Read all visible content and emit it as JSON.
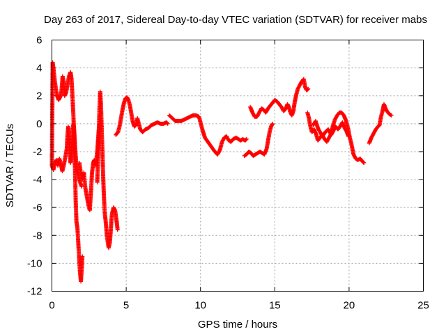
{
  "chart_data": {
    "type": "scatter",
    "title": "Day 263 of 2017, Sidereal Day-to-day VTEC variation (SDTVAR) for receiver mabs",
    "xlabel": "GPS time / hours",
    "ylabel": "SDTVAR / TECUs",
    "xlim": [
      0,
      25
    ],
    "ylim": [
      -12,
      6
    ],
    "xticks": [
      0,
      5,
      10,
      15,
      20,
      25
    ],
    "xtick_labels": [
      "0",
      "5",
      "10",
      "15",
      "20",
      "25"
    ],
    "yticks": [
      -12,
      -10,
      -8,
      -6,
      -4,
      -2,
      0,
      2,
      4,
      6
    ],
    "ytick_labels": [
      "-12",
      "-10",
      "-8",
      "-6",
      "-4",
      "-2",
      "0",
      "2",
      "4",
      "6"
    ],
    "grid": true,
    "marker": "+",
    "marker_color": "#ff0000",
    "series": [
      {
        "name": "SDTVAR",
        "tracks": [
          [
            [
              0.0,
              -3.0
            ],
            [
              0.05,
              4.4
            ],
            [
              0.12,
              3.8
            ],
            [
              0.2,
              3.0
            ],
            [
              0.28,
              2.4
            ],
            [
              0.35,
              2.0
            ],
            [
              0.45,
              1.7
            ],
            [
              0.55,
              1.9
            ],
            [
              0.65,
              2.4
            ],
            [
              0.72,
              3.4
            ],
            [
              0.8,
              3.0
            ],
            [
              0.85,
              2.0
            ],
            [
              0.95,
              2.2
            ],
            [
              1.05,
              2.8
            ],
            [
              1.15,
              3.4
            ],
            [
              1.25,
              3.7
            ],
            [
              1.32,
              3.2
            ],
            [
              1.38,
              2.0
            ],
            [
              1.45,
              0.5
            ],
            [
              1.5,
              -1.0
            ],
            [
              1.55,
              -3.0
            ],
            [
              1.6,
              -5.5
            ],
            [
              1.65,
              -7.0
            ],
            [
              1.72,
              -7.5
            ],
            [
              1.8,
              -9.0
            ],
            [
              1.88,
              -10.5
            ],
            [
              1.95,
              -11.3
            ],
            [
              2.0,
              -10.5
            ],
            [
              2.05,
              -9.5
            ]
          ],
          [
            [
              0.0,
              -3.0
            ],
            [
              0.1,
              -3.3
            ],
            [
              0.2,
              -2.8
            ],
            [
              0.3,
              -2.6
            ],
            [
              0.4,
              -3.0
            ],
            [
              0.5,
              -2.5
            ],
            [
              0.6,
              -2.9
            ],
            [
              0.7,
              -3.4
            ],
            [
              0.8,
              -3.0
            ],
            [
              0.9,
              -2.4
            ],
            [
              1.0,
              -1.8
            ],
            [
              1.05,
              -0.8
            ],
            [
              1.1,
              -0.2
            ],
            [
              1.15,
              -1.0
            ],
            [
              1.2,
              -2.0
            ],
            [
              1.25,
              -2.8
            ],
            [
              1.3,
              -2.4
            ],
            [
              1.35,
              -1.2
            ],
            [
              1.4,
              -0.4
            ],
            [
              1.45,
              0.0
            ],
            [
              1.5,
              -0.5
            ],
            [
              1.55,
              -1.5
            ],
            [
              1.62,
              -2.6
            ],
            [
              1.7,
              -3.2
            ],
            [
              1.8,
              -3.8
            ],
            [
              1.9,
              -4.2
            ],
            [
              2.0,
              -4.5
            ]
          ],
          [
            [
              1.85,
              -2.8
            ],
            [
              1.95,
              -3.6
            ],
            [
              2.05,
              -4.0
            ],
            [
              2.15,
              -3.5
            ],
            [
              2.25,
              -4.6
            ],
            [
              2.35,
              -5.2
            ],
            [
              2.45,
              -5.8
            ],
            [
              2.55,
              -6.2
            ],
            [
              2.62,
              -5.0
            ],
            [
              2.7,
              -3.5
            ],
            [
              2.78,
              -2.8
            ],
            [
              2.85,
              -2.6
            ],
            [
              2.95,
              -3.0
            ],
            [
              3.05,
              -2.0
            ],
            [
              3.15,
              -0.5
            ],
            [
              3.25,
              0.0
            ],
            [
              3.35,
              -0.2
            ]
          ],
          [
            [
              3.05,
              -4.2
            ],
            [
              3.1,
              -2.5
            ],
            [
              3.15,
              -0.8
            ],
            [
              3.2,
              1.0
            ],
            [
              3.25,
              2.3
            ],
            [
              3.3,
              1.4
            ],
            [
              3.35,
              -0.4
            ],
            [
              3.4,
              -2.0
            ],
            [
              3.45,
              -3.8
            ],
            [
              3.5,
              -5.2
            ],
            [
              3.55,
              -6.3
            ],
            [
              3.62,
              -7.0
            ],
            [
              3.7,
              -8.0
            ],
            [
              3.75,
              -8.4
            ],
            [
              3.82,
              -8.9
            ],
            [
              3.9,
              -8.5
            ],
            [
              3.95,
              -7.8
            ],
            [
              4.0,
              -7.0
            ],
            [
              4.05,
              -6.4
            ],
            [
              4.15,
              -6.0
            ],
            [
              4.25,
              -6.2
            ],
            [
              4.32,
              -6.7
            ],
            [
              4.38,
              -7.2
            ],
            [
              4.42,
              -7.6
            ]
          ],
          [
            [
              4.3,
              -0.8
            ],
            [
              4.45,
              -0.6
            ],
            [
              4.55,
              -0.2
            ],
            [
              4.65,
              0.4
            ],
            [
              4.75,
              1.0
            ],
            [
              4.85,
              1.5
            ],
            [
              4.95,
              1.8
            ],
            [
              5.05,
              1.9
            ],
            [
              5.15,
              1.7
            ],
            [
              5.25,
              1.3
            ],
            [
              5.35,
              0.7
            ],
            [
              5.45,
              0.1
            ],
            [
              5.55,
              -0.2
            ],
            [
              5.65,
              -0.1
            ],
            [
              5.75,
              0.4
            ],
            [
              5.85,
              0.0
            ],
            [
              5.95,
              -0.4
            ],
            [
              6.1,
              -0.6
            ],
            [
              6.3,
              -0.4
            ],
            [
              6.5,
              -0.3
            ],
            [
              6.7,
              -0.1
            ],
            [
              6.9,
              0.0
            ],
            [
              7.1,
              0.1
            ],
            [
              7.3,
              0.0
            ],
            [
              7.5,
              0.0
            ],
            [
              7.7,
              0.1
            ],
            [
              7.8,
              0.0
            ]
          ],
          [
            [
              7.9,
              0.6
            ],
            [
              8.1,
              0.4
            ],
            [
              8.3,
              0.2
            ],
            [
              8.5,
              0.2
            ],
            [
              8.7,
              0.2
            ],
            [
              8.9,
              0.3
            ],
            [
              9.1,
              0.4
            ],
            [
              9.3,
              0.5
            ],
            [
              9.5,
              0.6
            ],
            [
              9.7,
              0.6
            ],
            [
              9.9,
              0.5
            ],
            [
              10.0,
              0.1
            ],
            [
              10.15,
              -0.5
            ],
            [
              10.3,
              -1.0
            ],
            [
              10.5,
              -1.3
            ],
            [
              10.7,
              -1.6
            ],
            [
              10.9,
              -1.9
            ],
            [
              11.05,
              -2.1
            ],
            [
              11.15,
              -2.2
            ],
            [
              11.3,
              -1.9
            ],
            [
              11.45,
              -1.3
            ],
            [
              11.6,
              -1.0
            ],
            [
              11.75,
              -0.9
            ],
            [
              11.9,
              -1.2
            ],
            [
              12.05,
              -1.3
            ],
            [
              12.2,
              -1.1
            ],
            [
              12.4,
              -1.0
            ],
            [
              12.55,
              -1.1
            ],
            [
              12.7,
              -1.2
            ],
            [
              12.85,
              -1.1
            ],
            [
              13.0,
              -1.2
            ],
            [
              13.1,
              -1.1
            ]
          ],
          [
            [
              12.95,
              -2.3
            ],
            [
              13.1,
              -2.2
            ],
            [
              13.25,
              -2.0
            ],
            [
              13.4,
              -2.1
            ],
            [
              13.55,
              -2.3
            ],
            [
              13.7,
              -2.2
            ],
            [
              13.85,
              -2.1
            ],
            [
              14.0,
              -2.0
            ],
            [
              14.15,
              -2.1
            ],
            [
              14.3,
              -2.2
            ],
            [
              14.45,
              -1.8
            ],
            [
              14.55,
              -1.2
            ],
            [
              14.65,
              -0.6
            ],
            [
              14.75,
              -0.2
            ],
            [
              14.85,
              0.0
            ]
          ],
          [
            [
              13.35,
              1.2
            ],
            [
              13.5,
              0.8
            ],
            [
              13.65,
              0.5
            ],
            [
              13.8,
              0.5
            ],
            [
              13.95,
              0.8
            ],
            [
              14.1,
              1.1
            ],
            [
              14.25,
              1.0
            ],
            [
              14.4,
              0.8
            ],
            [
              14.55,
              1.1
            ],
            [
              14.7,
              1.3
            ],
            [
              14.85,
              1.5
            ],
            [
              15.0,
              1.7
            ],
            [
              15.15,
              1.6
            ],
            [
              15.3,
              1.4
            ],
            [
              15.45,
              1.2
            ],
            [
              15.6,
              0.9
            ],
            [
              15.75,
              1.1
            ],
            [
              15.85,
              1.4
            ],
            [
              15.95,
              1.2
            ],
            [
              16.05,
              0.8
            ],
            [
              16.15,
              0.6
            ],
            [
              16.25,
              0.9
            ],
            [
              16.35,
              1.6
            ],
            [
              16.45,
              2.1
            ],
            [
              16.55,
              2.5
            ],
            [
              16.7,
              2.8
            ],
            [
              16.8,
              3.0
            ],
            [
              16.95,
              3.2
            ],
            [
              17.05,
              2.6
            ],
            [
              17.15,
              2.4
            ],
            [
              17.25,
              2.5
            ]
          ],
          [
            [
              17.2,
              0.8
            ],
            [
              17.3,
              0.4
            ],
            [
              17.4,
              -0.2
            ],
            [
              17.5,
              -0.6
            ],
            [
              17.65,
              -0.4
            ],
            [
              17.8,
              -0.8
            ],
            [
              17.9,
              -1.2
            ],
            [
              18.05,
              -1.0
            ],
            [
              18.2,
              -0.8
            ],
            [
              18.35,
              -1.1
            ],
            [
              18.5,
              -1.3
            ],
            [
              18.65,
              -1.0
            ],
            [
              18.8,
              -0.7
            ],
            [
              18.9,
              -0.2
            ],
            [
              19.05,
              0.3
            ],
            [
              19.2,
              0.6
            ],
            [
              19.35,
              0.8
            ],
            [
              19.5,
              0.8
            ],
            [
              19.65,
              0.6
            ],
            [
              19.8,
              0.2
            ],
            [
              19.95,
              -0.4
            ],
            [
              20.05,
              -1.0
            ],
            [
              20.15,
              -1.4
            ],
            [
              20.3,
              -2.2
            ],
            [
              20.45,
              -2.5
            ],
            [
              20.6,
              -2.6
            ],
            [
              20.75,
              -2.5
            ],
            [
              20.9,
              -2.7
            ],
            [
              21.0,
              -2.8
            ]
          ],
          [
            [
              17.6,
              -0.1
            ],
            [
              17.75,
              0.2
            ],
            [
              17.9,
              -0.3
            ],
            [
              18.05,
              -0.6
            ],
            [
              18.2,
              -0.9
            ],
            [
              18.4,
              -0.6
            ],
            [
              18.6,
              -0.4
            ],
            [
              18.8,
              -0.8
            ],
            [
              18.95,
              -0.5
            ],
            [
              19.1,
              -0.2
            ],
            [
              19.25,
              -0.4
            ],
            [
              19.4,
              -0.2
            ],
            [
              19.55,
              0.1
            ],
            [
              19.7,
              -0.3
            ],
            [
              19.85,
              -0.6
            ],
            [
              19.95,
              -0.9
            ]
          ],
          [
            [
              21.35,
              -1.4
            ],
            [
              21.5,
              -1.0
            ],
            [
              21.65,
              -0.7
            ],
            [
              21.8,
              -0.4
            ],
            [
              21.95,
              -0.2
            ],
            [
              22.05,
              -0.1
            ],
            [
              22.15,
              0.5
            ],
            [
              22.25,
              0.9
            ],
            [
              22.35,
              1.4
            ],
            [
              22.45,
              1.1
            ],
            [
              22.55,
              0.9
            ],
            [
              22.7,
              0.7
            ],
            [
              22.85,
              0.6
            ]
          ]
        ]
      }
    ]
  }
}
